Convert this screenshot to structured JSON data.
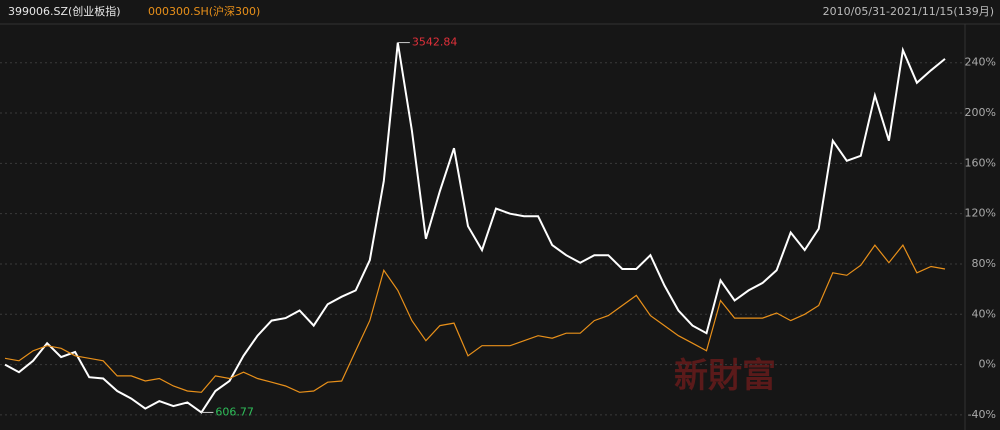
{
  "chart_data": {
    "type": "line",
    "title": "399006.SZ(创业板指)",
    "subtitle": "000300.SH(沪深300)",
    "date_range": "2010/05/31-2021/11/15(139月)",
    "watermark": "新財富",
    "max_label": "3542.84",
    "min_label": "606.77",
    "ylim": [
      -48,
      266
    ],
    "yticks": [
      {
        "value": -40,
        "label": "-40%"
      },
      {
        "value": 0,
        "label": "0%"
      },
      {
        "value": 40,
        "label": "40%"
      },
      {
        "value": 80,
        "label": "80%"
      },
      {
        "value": 120,
        "label": "120%"
      },
      {
        "value": 160,
        "label": "160%"
      },
      {
        "value": 200,
        "label": "200%"
      },
      {
        "value": 240,
        "label": "240%"
      }
    ],
    "grid": true,
    "series": [
      {
        "name": "399006.SZ(创业板指)",
        "color": "#ffffff",
        "values": [
          0,
          -6,
          3,
          17,
          6,
          10,
          -10,
          -11,
          -21,
          -27,
          -35,
          -29,
          -33,
          -30,
          -38,
          -21,
          -13,
          7,
          23,
          35,
          37,
          43,
          31,
          48,
          54,
          59,
          83,
          146,
          256,
          186,
          100,
          138,
          172,
          110,
          91,
          124,
          120,
          118,
          118,
          95,
          87,
          81,
          87,
          87,
          76,
          76,
          87,
          63,
          43,
          31,
          25,
          67,
          51,
          59,
          65,
          75,
          105,
          91,
          108,
          178,
          162,
          166,
          214,
          178,
          250,
          224,
          234,
          243
        ]
      },
      {
        "name": "000300.SH(沪深300)",
        "color": "#e8901a",
        "values": [
          5,
          3,
          11,
          15,
          13,
          7,
          5,
          3,
          -9,
          -9,
          -13,
          -11,
          -17,
          -21,
          -22,
          -9,
          -11,
          -6,
          -11,
          -14,
          -17,
          -22,
          -21,
          -14,
          -13,
          11,
          35,
          75,
          59,
          35,
          19,
          31,
          33,
          7,
          15,
          15,
          15,
          19,
          23,
          21,
          25,
          25,
          35,
          39,
          47,
          55,
          39,
          31,
          23,
          17,
          11,
          51,
          37,
          37,
          37,
          41,
          35,
          40,
          47,
          73,
          71,
          79,
          95,
          81,
          95,
          73,
          78,
          76
        ]
      }
    ]
  }
}
